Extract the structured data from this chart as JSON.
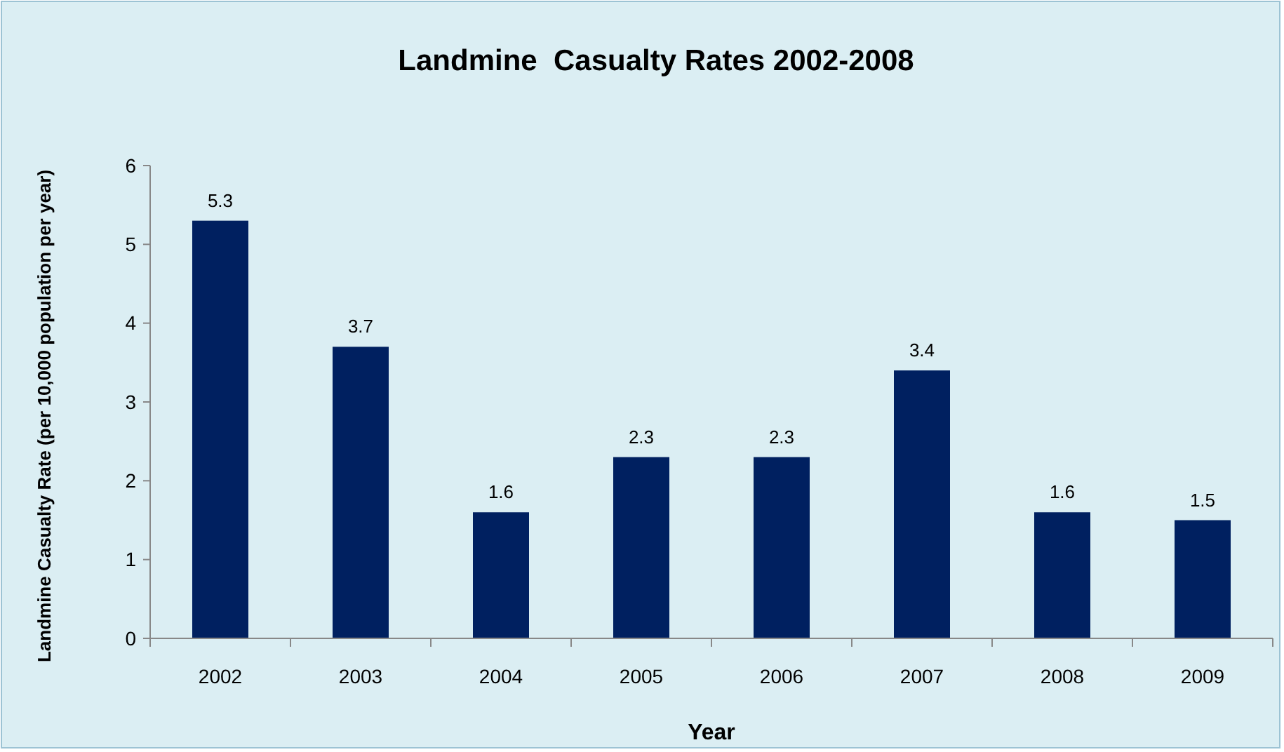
{
  "chart_data": {
    "type": "bar",
    "title": "Landmine  Casualty Rates 2002-2008",
    "xlabel": "Year",
    "ylabel": "Landmine Casualty Rate (per 10,000 population per year)",
    "categories": [
      "2002",
      "2003",
      "2004",
      "2005",
      "2006",
      "2007",
      "2008",
      "2009"
    ],
    "values": [
      5.3,
      3.7,
      1.6,
      2.3,
      2.3,
      3.4,
      1.6,
      1.5
    ],
    "color": "#002060",
    "ylim": [
      0,
      6
    ],
    "yticks": [
      0,
      1,
      2,
      3,
      4,
      5,
      6
    ],
    "grid": false,
    "data_labels": true
  }
}
